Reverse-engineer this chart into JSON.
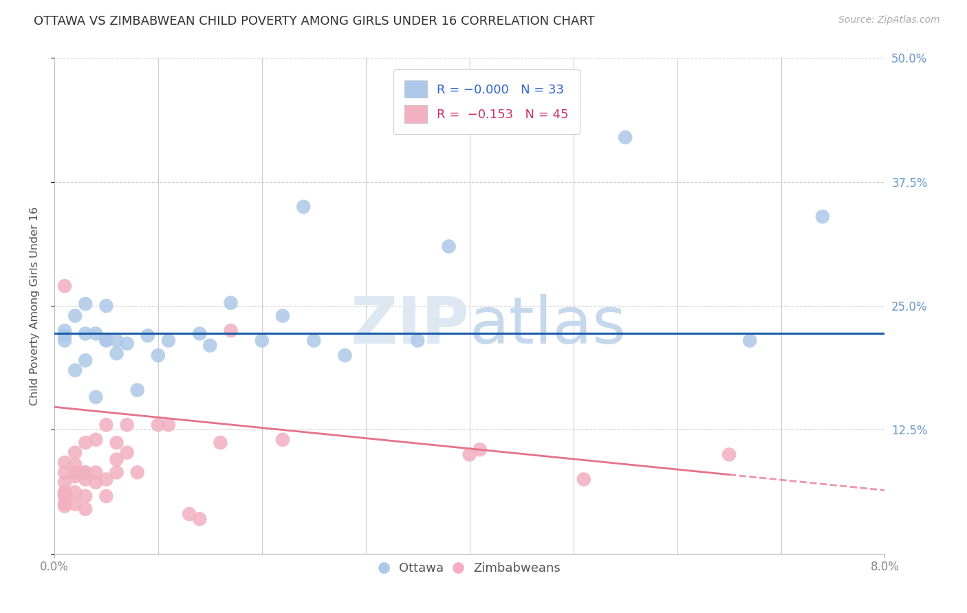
{
  "title": "OTTAWA VS ZIMBABWEAN CHILD POVERTY AMONG GIRLS UNDER 16 CORRELATION CHART",
  "source": "Source: ZipAtlas.com",
  "ylabel": "Child Poverty Among Girls Under 16",
  "xlim": [
    0.0,
    0.08
  ],
  "ylim": [
    0.0,
    0.5
  ],
  "xtick_positions": [
    0.0,
    0.08
  ],
  "xticklabels": [
    "0.0%",
    "8.0%"
  ],
  "yticks": [
    0.0,
    0.125,
    0.25,
    0.375,
    0.5
  ],
  "yticklabels": [
    "",
    "12.5%",
    "25.0%",
    "37.5%",
    "50.0%"
  ],
  "legend_r1": "R = -0.000",
  "legend_n1": "N = 33",
  "legend_r2": "R =  -0.153",
  "legend_n2": "N = 45",
  "blue_color": "#adc8e8",
  "pink_color": "#f2b0c0",
  "line_blue": "#1a5ca8",
  "line_pink": "#e8708a",
  "background_color": "#ffffff",
  "ottawa_x": [
    0.001,
    0.001,
    0.001,
    0.002,
    0.002,
    0.003,
    0.003,
    0.003,
    0.004,
    0.004,
    0.005,
    0.005,
    0.005,
    0.006,
    0.006,
    0.007,
    0.008,
    0.009,
    0.01,
    0.011,
    0.014,
    0.015,
    0.017,
    0.02,
    0.022,
    0.024,
    0.025,
    0.028,
    0.035,
    0.038,
    0.055,
    0.067,
    0.074
  ],
  "ottawa_y": [
    0.215,
    0.22,
    0.225,
    0.185,
    0.24,
    0.195,
    0.222,
    0.252,
    0.158,
    0.222,
    0.216,
    0.25,
    0.215,
    0.202,
    0.215,
    0.212,
    0.165,
    0.22,
    0.2,
    0.215,
    0.222,
    0.21,
    0.253,
    0.215,
    0.24,
    0.35,
    0.215,
    0.2,
    0.215,
    0.31,
    0.42,
    0.215,
    0.34
  ],
  "zimbabwean_x": [
    0.001,
    0.001,
    0.001,
    0.001,
    0.001,
    0.001,
    0.001,
    0.001,
    0.001,
    0.001,
    0.002,
    0.002,
    0.002,
    0.002,
    0.002,
    0.002,
    0.003,
    0.003,
    0.003,
    0.003,
    0.003,
    0.003,
    0.004,
    0.004,
    0.004,
    0.005,
    0.005,
    0.005,
    0.006,
    0.006,
    0.006,
    0.007,
    0.007,
    0.008,
    0.01,
    0.011,
    0.013,
    0.014,
    0.016,
    0.017,
    0.022,
    0.04,
    0.041,
    0.051,
    0.065
  ],
  "zimbabwean_y": [
    0.048,
    0.058,
    0.06,
    0.062,
    0.05,
    0.06,
    0.072,
    0.082,
    0.092,
    0.27,
    0.05,
    0.062,
    0.078,
    0.082,
    0.09,
    0.102,
    0.058,
    0.075,
    0.082,
    0.082,
    0.112,
    0.045,
    0.072,
    0.082,
    0.115,
    0.058,
    0.075,
    0.13,
    0.095,
    0.112,
    0.082,
    0.102,
    0.13,
    0.082,
    0.13,
    0.13,
    0.04,
    0.035,
    0.112,
    0.225,
    0.115,
    0.1,
    0.105,
    0.075,
    0.1
  ],
  "blue_line_y": 0.222,
  "pink_line_intercept": 0.148,
  "pink_line_slope": -1.05,
  "xgrid_positions": [
    0.01,
    0.02,
    0.03,
    0.04,
    0.05,
    0.06,
    0.07
  ]
}
